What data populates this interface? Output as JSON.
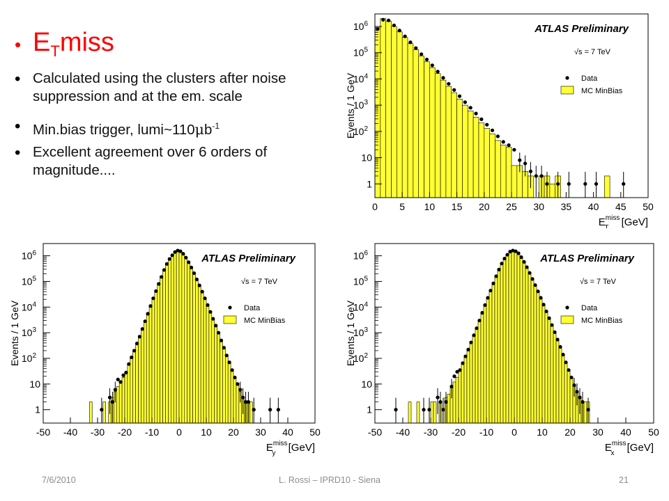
{
  "slide": {
    "title_main": "E",
    "title_sub": "T",
    "title_rest": "miss",
    "bullets": [
      {
        "text": "Calculated using the clusters after noise suppression and at the em. scale"
      },
      {
        "text": "Min.bias trigger, lumi~110",
        "mu": "μ",
        "tail": "b",
        "sup": "-1"
      },
      {
        "text": "Excellent agreement over 6 orders of magnitude...."
      }
    ],
    "footer": {
      "date": "7/6/2010",
      "center": "L. Rossi  – IPRD10 - Siena",
      "page": "21"
    }
  },
  "colors": {
    "title": "#ff0000",
    "mc_fill": "#ffff33",
    "mc_line": "#000000",
    "data_marker": "#000000"
  },
  "chart_data": [
    {
      "id": "met",
      "type": "area",
      "title": "ATLAS Preliminary",
      "energy_label": "√s = 7 TeV",
      "ylabel": "Events / 1 GeV",
      "xlabel_main": "E",
      "xlabel_sub": "T",
      "xlabel_sup": "miss",
      "xlabel_unit": "[GeV]",
      "xlim": [
        0,
        50
      ],
      "ylim": [
        0.3,
        3000000
      ],
      "log_y": true,
      "x_ticks": [
        "0",
        "5",
        "10",
        "15",
        "20",
        "25",
        "30",
        "35",
        "40",
        "45",
        "50"
      ],
      "y_ticks": [
        {
          "label": "1",
          "exp": ""
        },
        {
          "label": "10",
          "exp": ""
        },
        {
          "label": "10",
          "exp": "2"
        },
        {
          "label": "10",
          "exp": "3"
        },
        {
          "label": "10",
          "exp": "4"
        },
        {
          "label": "10",
          "exp": "5"
        },
        {
          "label": "10",
          "exp": "6"
        }
      ],
      "legend": [
        {
          "name": "Data",
          "marker": "dot"
        },
        {
          "name": "MC MinBias",
          "marker": "box"
        }
      ],
      "series": [
        {
          "name": "Data",
          "x": [
            0.5,
            1.5,
            2.5,
            3.5,
            4.5,
            5.5,
            6.5,
            7.5,
            8.5,
            9.5,
            10.5,
            11.5,
            12.5,
            13.5,
            14.5,
            15.5,
            16.5,
            17.5,
            18.5,
            19.5,
            20.5,
            21.5,
            22.5,
            23.5,
            24.5,
            25.5,
            26.5,
            27.5,
            28.5,
            29.5,
            30.5,
            31.5,
            33.5,
            35.5,
            38.5,
            40.5,
            45.5
          ],
          "y": [
            800000,
            1800000,
            1700000,
            1100000,
            700000,
            420000,
            250000,
            150000,
            88000,
            55000,
            33000,
            19000,
            11000,
            6500,
            3800,
            2200,
            1300,
            800,
            480,
            290,
            180,
            110,
            65,
            40,
            30,
            20,
            8,
            6,
            3,
            2,
            2,
            1,
            1,
            1,
            1,
            1,
            1
          ]
        },
        {
          "name": "MC MinBias",
          "x": [
            0.5,
            1.5,
            2.5,
            3.5,
            4.5,
            5.5,
            6.5,
            7.5,
            8.5,
            9.5,
            10.5,
            11.5,
            12.5,
            13.5,
            14.5,
            15.5,
            16.5,
            17.5,
            18.5,
            19.5,
            20.5,
            21.5,
            22.5,
            23.5,
            24.5,
            25.5,
            26.5,
            27.5,
            28.5,
            29.5,
            30.5,
            31.5,
            32.5,
            33.5,
            42.5
          ],
          "y": [
            900000,
            2000000,
            1600000,
            1000000,
            620000,
            380000,
            220000,
            130000,
            75000,
            45000,
            27000,
            16000,
            9000,
            5200,
            3000,
            1700,
            1000,
            600,
            350,
            210,
            130,
            80,
            45,
            30,
            25,
            5,
            5,
            3,
            2,
            0,
            2,
            2,
            1,
            2,
            2
          ]
        }
      ]
    },
    {
      "id": "mety",
      "type": "area",
      "title": "ATLAS Preliminary",
      "energy_label": "√s = 7 TeV",
      "ylabel": "Events / 1 GeV",
      "xlabel_main": "E",
      "xlabel_sub": "y",
      "xlabel_sup": "miss",
      "xlabel_unit": "[GeV]",
      "xlim": [
        -50,
        50
      ],
      "ylim": [
        0.3,
        3000000
      ],
      "log_y": true,
      "x_ticks": [
        "-50",
        "-40",
        "-30",
        "-20",
        "-10",
        "0",
        "10",
        "20",
        "30",
        "40",
        "50"
      ],
      "y_ticks": [
        {
          "label": "1",
          "exp": ""
        },
        {
          "label": "10",
          "exp": ""
        },
        {
          "label": "10",
          "exp": "2"
        },
        {
          "label": "10",
          "exp": "3"
        },
        {
          "label": "10",
          "exp": "4"
        },
        {
          "label": "10",
          "exp": "5"
        },
        {
          "label": "10",
          "exp": "6"
        }
      ],
      "legend": [
        {
          "name": "Data",
          "marker": "dot"
        },
        {
          "name": "MC MinBias",
          "marker": "box"
        }
      ],
      "series": [
        {
          "name": "Data",
          "x": [
            -28.5,
            -25.5,
            -24.5,
            -23.5,
            -22.5,
            -21.5,
            -20.5,
            -19.5,
            -18.5,
            -17.5,
            -16.5,
            -15.5,
            -14.5,
            -13.5,
            -12.5,
            -11.5,
            -10.5,
            -9.5,
            -8.5,
            -7.5,
            -6.5,
            -5.5,
            -4.5,
            -3.5,
            -2.5,
            -1.5,
            -0.5,
            0.5,
            1.5,
            2.5,
            3.5,
            4.5,
            5.5,
            6.5,
            7.5,
            8.5,
            9.5,
            10.5,
            11.5,
            12.5,
            13.5,
            14.5,
            15.5,
            16.5,
            17.5,
            18.5,
            19.5,
            20.5,
            21.5,
            22.5,
            23.5,
            24.5,
            25.5,
            27.5,
            33.5,
            36.5
          ],
          "y": [
            1,
            3,
            2,
            6,
            15,
            12,
            22,
            28,
            60,
            110,
            200,
            380,
            700,
            1400,
            2800,
            5500,
            11000,
            22000,
            42000,
            80000,
            150000,
            280000,
            480000,
            750000,
            1050000,
            1400000,
            1600000,
            1500000,
            1200000,
            850000,
            560000,
            350000,
            210000,
            120000,
            70000,
            40000,
            22000,
            12000,
            6500,
            3500,
            1900,
            1000,
            500,
            260,
            130,
            70,
            35,
            18,
            10,
            6,
            3,
            2,
            2,
            1,
            1,
            1
          ]
        },
        {
          "name": "MC MinBias",
          "x": [
            -32.5,
            -27.5,
            -25.5,
            -24.5,
            -23.5,
            -22.5,
            -21.5,
            -20.5,
            -19.5,
            -18.5,
            -17.5,
            -16.5,
            -15.5,
            -14.5,
            -13.5,
            -12.5,
            -11.5,
            -10.5,
            -9.5,
            -8.5,
            -7.5,
            -6.5,
            -5.5,
            -4.5,
            -3.5,
            -2.5,
            -1.5,
            -0.5,
            0.5,
            1.5,
            2.5,
            3.5,
            4.5,
            5.5,
            6.5,
            7.5,
            8.5,
            9.5,
            10.5,
            11.5,
            12.5,
            13.5,
            14.5,
            15.5,
            16.5,
            17.5,
            18.5,
            19.5,
            20.5,
            21.5,
            22.5,
            23.5,
            24.5,
            25.5,
            26.5
          ],
          "y": [
            2,
            2,
            2,
            3,
            5,
            8,
            12,
            18,
            30,
            60,
            110,
            210,
            400,
            780,
            1500,
            3000,
            6000,
            12000,
            24000,
            46000,
            88000,
            165000,
            300000,
            520000,
            820000,
            1150000,
            1500000,
            1650000,
            1550000,
            1250000,
            880000,
            580000,
            360000,
            215000,
            125000,
            72000,
            41000,
            23000,
            12500,
            6800,
            3700,
            2000,
            1050,
            540,
            280,
            140,
            70,
            35,
            18,
            9,
            5,
            3,
            2,
            2,
            2
          ]
        }
      ]
    },
    {
      "id": "metx",
      "type": "area",
      "title": "ATLAS Preliminary",
      "energy_label": "√s = 7 TeV",
      "ylabel": "Events / 1 GeV",
      "xlabel_main": "E",
      "xlabel_sub": "x",
      "xlabel_sup": "miss",
      "xlabel_unit": "[GeV]",
      "xlim": [
        -50,
        50
      ],
      "ylim": [
        0.3,
        3000000
      ],
      "log_y": true,
      "x_ticks": [
        "-50",
        "-40",
        "-30",
        "-20",
        "-10",
        "0",
        "10",
        "20",
        "30",
        "40",
        "50"
      ],
      "y_ticks": [
        {
          "label": "1",
          "exp": ""
        },
        {
          "label": "10",
          "exp": ""
        },
        {
          "label": "10",
          "exp": "2"
        },
        {
          "label": "10",
          "exp": "3"
        },
        {
          "label": "10",
          "exp": "4"
        },
        {
          "label": "10",
          "exp": "5"
        },
        {
          "label": "10",
          "exp": "6"
        }
      ],
      "legend": [
        {
          "name": "Data",
          "marker": "dot"
        },
        {
          "name": "MC MinBias",
          "marker": "box"
        }
      ],
      "series": [
        {
          "name": "Data",
          "x": [
            -42.5,
            -32.5,
            -30.5,
            -27.5,
            -26.5,
            -25.5,
            -24.5,
            -22.5,
            -21.5,
            -20.5,
            -19.5,
            -18.5,
            -17.5,
            -16.5,
            -15.5,
            -14.5,
            -13.5,
            -12.5,
            -11.5,
            -10.5,
            -9.5,
            -8.5,
            -7.5,
            -6.5,
            -5.5,
            -4.5,
            -3.5,
            -2.5,
            -1.5,
            -0.5,
            0.5,
            1.5,
            2.5,
            3.5,
            4.5,
            5.5,
            6.5,
            7.5,
            8.5,
            9.5,
            10.5,
            11.5,
            12.5,
            13.5,
            14.5,
            15.5,
            16.5,
            17.5,
            18.5,
            19.5,
            20.5,
            21.5,
            22.5,
            23.5,
            24.5,
            26.5
          ],
          "y": [
            1,
            1,
            1,
            3,
            2,
            1,
            2,
            8,
            20,
            30,
            35,
            65,
            120,
            220,
            420,
            800,
            1500,
            3000,
            6000,
            12000,
            23000,
            44000,
            84000,
            160000,
            290000,
            500000,
            780000,
            1100000,
            1450000,
            1600000,
            1500000,
            1250000,
            880000,
            580000,
            360000,
            215000,
            125000,
            72000,
            41000,
            23000,
            12500,
            6800,
            3700,
            2000,
            1050,
            540,
            280,
            140,
            70,
            35,
            18,
            9,
            5,
            3,
            2,
            1
          ]
        },
        {
          "name": "MC MinBias",
          "x": [
            -37.5,
            -34.5,
            -29.5,
            -28.5,
            -26.5,
            -24.5,
            -23.5,
            -22.5,
            -21.5,
            -20.5,
            -19.5,
            -18.5,
            -17.5,
            -16.5,
            -15.5,
            -14.5,
            -13.5,
            -12.5,
            -11.5,
            -10.5,
            -9.5,
            -8.5,
            -7.5,
            -6.5,
            -5.5,
            -4.5,
            -3.5,
            -2.5,
            -1.5,
            -0.5,
            0.5,
            1.5,
            2.5,
            3.5,
            4.5,
            5.5,
            6.5,
            7.5,
            8.5,
            9.5,
            10.5,
            11.5,
            12.5,
            13.5,
            14.5,
            15.5,
            16.5,
            17.5,
            18.5,
            19.5,
            20.5,
            21.5,
            22.5,
            23.5,
            24.5,
            25.5,
            26.5
          ],
          "y": [
            2,
            2,
            2,
            2,
            2,
            3,
            4,
            7,
            12,
            18,
            32,
            60,
            110,
            210,
            400,
            780,
            1500,
            3000,
            6000,
            12000,
            24000,
            46000,
            88000,
            165000,
            300000,
            520000,
            820000,
            1150000,
            1500000,
            1650000,
            1550000,
            1250000,
            880000,
            580000,
            360000,
            215000,
            125000,
            72000,
            41000,
            23000,
            12500,
            6800,
            3700,
            2000,
            1050,
            540,
            280,
            140,
            70,
            35,
            18,
            9,
            5,
            3,
            2,
            2,
            2
          ]
        }
      ]
    }
  ]
}
